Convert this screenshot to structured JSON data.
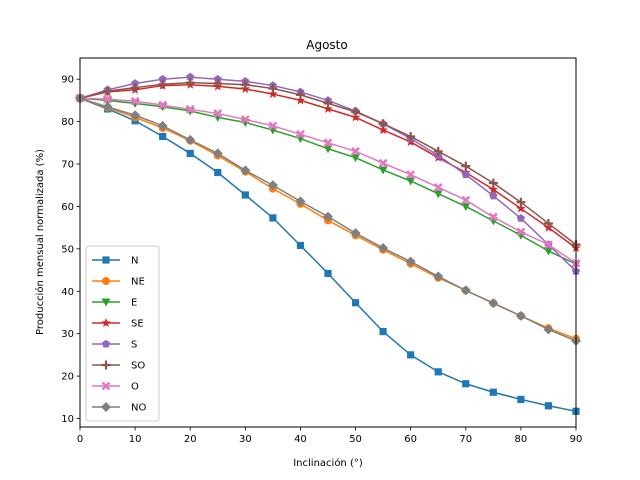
{
  "chart_data": {
    "type": "line",
    "title": "Agosto",
    "xlabel": "Inclinación (°)",
    "ylabel": "Producción mensual normalizada (%)",
    "xlim": [
      0,
      90
    ],
    "ylim": [
      8,
      95
    ],
    "xticks": [
      0,
      10,
      20,
      30,
      40,
      50,
      60,
      70,
      80,
      90
    ],
    "yticks": [
      10,
      20,
      30,
      40,
      50,
      60,
      70,
      80,
      90
    ],
    "grid": false,
    "legend_position": "lower-left",
    "x": [
      0,
      5,
      10,
      15,
      20,
      25,
      30,
      35,
      40,
      45,
      50,
      55,
      60,
      65,
      70,
      75,
      80,
      85,
      90
    ],
    "series": [
      {
        "name": "N",
        "color": "#1f77b4",
        "marker": "square",
        "values": [
          85.5,
          83.0,
          80.2,
          76.5,
          72.5,
          68.0,
          62.7,
          57.3,
          50.8,
          44.2,
          37.3,
          30.5,
          25.0,
          21.0,
          18.2,
          16.2,
          14.5,
          13.0,
          11.7
        ]
      },
      {
        "name": "NE",
        "color": "#ff7f0e",
        "marker": "circle",
        "values": [
          85.5,
          83.3,
          81.0,
          78.5,
          75.5,
          72.0,
          68.2,
          64.2,
          60.6,
          56.7,
          53.2,
          49.8,
          46.5,
          43.2,
          40.2,
          37.2,
          34.2,
          31.3,
          28.8
        ]
      },
      {
        "name": "E",
        "color": "#2ca02c",
        "marker": "triangle-down",
        "values": [
          85.5,
          85.0,
          84.3,
          83.5,
          82.5,
          81.0,
          79.8,
          78.0,
          76.0,
          73.6,
          71.5,
          68.6,
          66.0,
          63.0,
          60.0,
          56.6,
          53.2,
          49.5,
          46.4
        ]
      },
      {
        "name": "SE",
        "color": "#d62728",
        "marker": "star",
        "values": [
          85.5,
          87.0,
          87.5,
          88.5,
          88.7,
          88.3,
          87.7,
          86.5,
          85.0,
          83.0,
          81.0,
          78.0,
          75.2,
          71.5,
          68.0,
          64.0,
          59.5,
          55.0,
          50.2
        ]
      },
      {
        "name": "S",
        "color": "#9467bd",
        "marker": "pentagon",
        "values": [
          85.5,
          87.5,
          89.0,
          90.0,
          90.5,
          90.0,
          89.5,
          88.5,
          87.0,
          85.0,
          82.5,
          79.5,
          76.0,
          72.0,
          67.5,
          62.5,
          57.2,
          51.0,
          44.7
        ]
      },
      {
        "name": "SO",
        "color": "#8c564b",
        "marker": "plus",
        "values": [
          85.5,
          87.2,
          88.0,
          88.8,
          89.2,
          89.0,
          88.7,
          87.8,
          86.3,
          84.3,
          82.3,
          79.5,
          76.5,
          73.0,
          69.5,
          65.5,
          61.0,
          56.0,
          51.0
        ]
      },
      {
        "name": "O",
        "color": "#e377c2",
        "marker": "x",
        "values": [
          85.5,
          85.3,
          84.8,
          83.9,
          82.9,
          81.9,
          80.5,
          79.0,
          77.0,
          75.0,
          73.0,
          70.2,
          67.5,
          64.5,
          61.5,
          57.5,
          54.0,
          51.0,
          46.6
        ]
      },
      {
        "name": "NO",
        "color": "#7f7f7f",
        "marker": "diamond",
        "values": [
          85.5,
          83.5,
          81.5,
          79.0,
          75.7,
          72.5,
          68.5,
          65.0,
          61.2,
          57.6,
          53.7,
          50.2,
          47.0,
          43.5,
          40.2,
          37.2,
          34.2,
          31.0,
          28.3
        ]
      }
    ]
  }
}
